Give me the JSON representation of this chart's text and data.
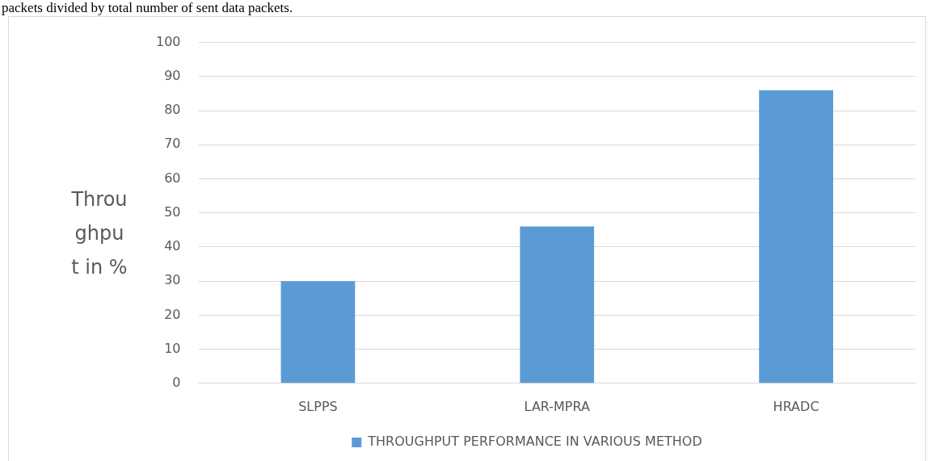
{
  "chart_data": {
    "type": "bar",
    "annotations": [
      "packets divided by total number of sent data packets."
    ],
    "ylabel": "Throughput in %",
    "categories": [
      "SLPPS",
      "LAR-MPRA",
      "HRADC"
    ],
    "series": [
      {
        "name": "THROUGHPUT PERFORMANCE IN VARIOUS METHOD",
        "color": "#5b9bd5",
        "values": [
          30,
          46,
          86
        ]
      }
    ],
    "ylim": [
      0,
      100
    ],
    "yticks": [
      0,
      10,
      20,
      30,
      40,
      50,
      60,
      70,
      80,
      90,
      100
    ],
    "grid": "y",
    "legend": "bottom"
  }
}
